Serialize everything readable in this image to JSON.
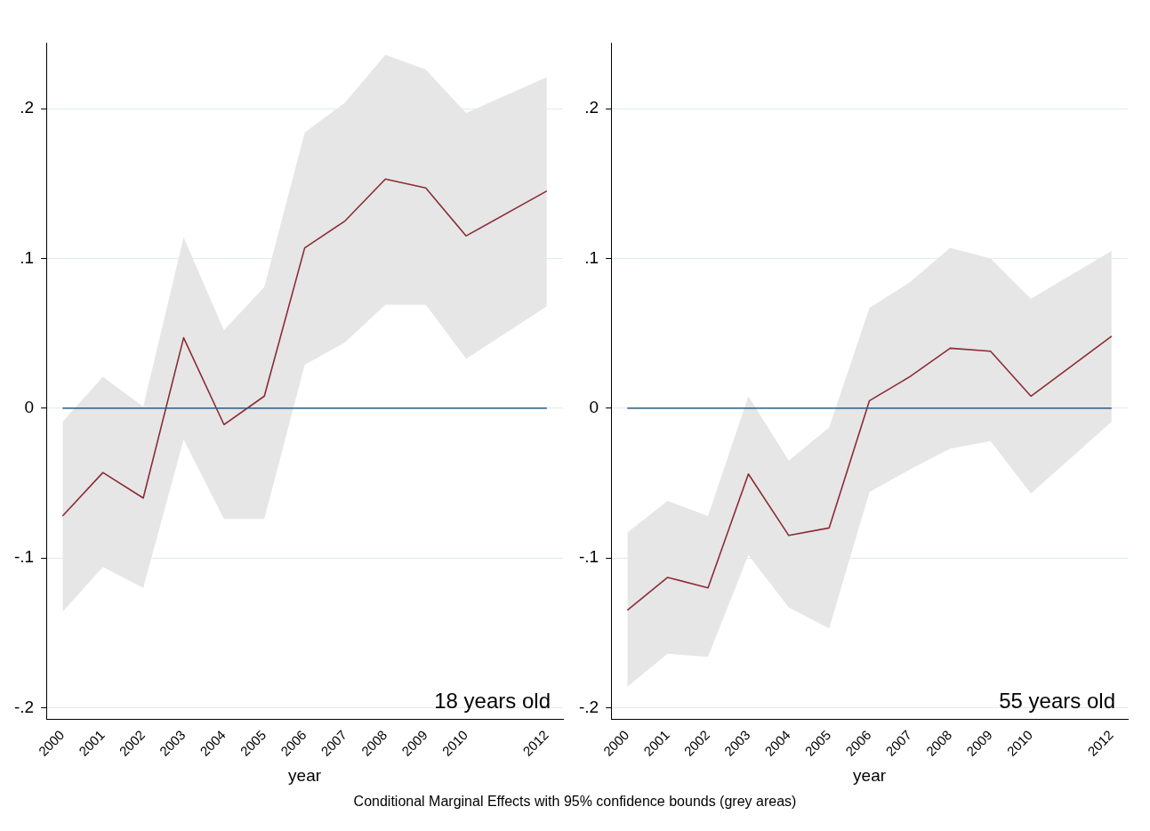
{
  "chart_data": [
    {
      "type": "line",
      "xlabel": "year",
      "annotations": [
        "18 years old",
        "Conditional Marginal Effects with 95% confidence bounds (grey areas)"
      ],
      "x": [
        2000,
        2001,
        2002,
        2003,
        2004,
        2005,
        2006,
        2007,
        2008,
        2009,
        2010,
        2012
      ],
      "xlim": [
        1999.6,
        2012.4
      ],
      "xticks": [
        2000,
        2001,
        2002,
        2003,
        2004,
        2005,
        2006,
        2007,
        2008,
        2009,
        2010,
        2012
      ],
      "ylim": [
        -0.208,
        0.244
      ],
      "yticks": [
        {
          "value": -0.2,
          "label": "-.2"
        },
        {
          "value": -0.1,
          "label": "-.1"
        },
        0,
        {
          "value": 0.1,
          "label": ".1"
        },
        {
          "value": 0.2,
          "label": ".2"
        }
      ],
      "grid": "y",
      "legend": false,
      "marker": "none",
      "line_style": "solid",
      "ref_lines": [
        {
          "axis": "y",
          "value": 0,
          "color": "#2b5b84"
        }
      ],
      "series": [
        {
          "color": "#8b2c35",
          "values": [
            -0.072,
            -0.043,
            -0.06,
            0.047,
            -0.011,
            0.008,
            0.107,
            0.125,
            0.153,
            0.147,
            0.115,
            0.145
          ],
          "lower": [
            -0.136,
            -0.106,
            -0.12,
            -0.021,
            -0.074,
            -0.074,
            0.029,
            0.044,
            0.069,
            0.069,
            0.033,
            0.068
          ],
          "upper": [
            -0.009,
            0.021,
            0.001,
            0.114,
            0.052,
            0.081,
            0.184,
            0.204,
            0.236,
            0.226,
            0.197,
            0.221
          ]
        }
      ]
    },
    {
      "type": "line",
      "xlabel": "year",
      "annotations": [
        "55 years old"
      ],
      "x": [
        2000,
        2001,
        2002,
        2003,
        2004,
        2005,
        2006,
        2007,
        2008,
        2009,
        2010,
        2012
      ],
      "xlim": [
        1999.6,
        2012.4
      ],
      "xticks": [
        2000,
        2001,
        2002,
        2003,
        2004,
        2005,
        2006,
        2007,
        2008,
        2009,
        2010,
        2012
      ],
      "ylim": [
        -0.208,
        0.244
      ],
      "yticks": [
        {
          "value": -0.2,
          "label": "-.2"
        },
        {
          "value": -0.1,
          "label": "-.1"
        },
        0,
        {
          "value": 0.1,
          "label": ".1"
        },
        {
          "value": 0.2,
          "label": ".2"
        }
      ],
      "grid": "y",
      "legend": false,
      "marker": "none",
      "line_style": "solid",
      "ref_lines": [
        {
          "axis": "y",
          "value": 0,
          "color": "#2b5b84"
        }
      ],
      "series": [
        {
          "color": "#8b2c35",
          "values": [
            -0.135,
            -0.113,
            -0.12,
            -0.044,
            -0.085,
            -0.08,
            0.005,
            0.021,
            0.04,
            0.038,
            0.008,
            0.048
          ],
          "lower": [
            -0.186,
            -0.164,
            -0.166,
            -0.098,
            -0.133,
            -0.147,
            -0.056,
            -0.041,
            -0.027,
            -0.022,
            -0.057,
            -0.009
          ],
          "upper": [
            -0.083,
            -0.062,
            -0.072,
            0.008,
            -0.035,
            -0.013,
            0.067,
            0.084,
            0.107,
            0.1,
            0.073,
            0.105
          ]
        }
      ]
    }
  ]
}
